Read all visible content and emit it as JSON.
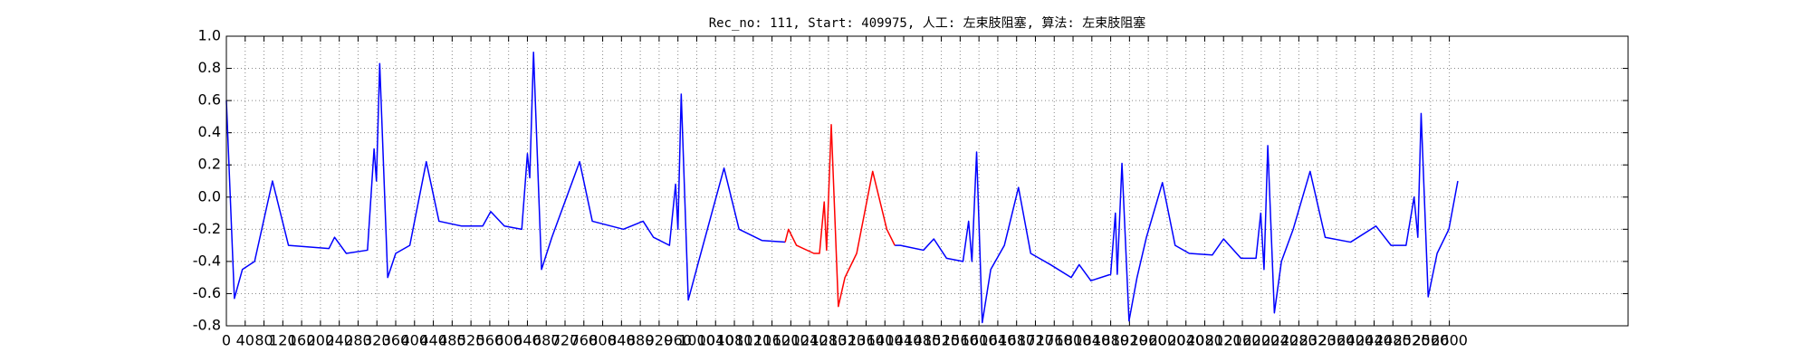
{
  "chart_data": {
    "type": "line",
    "title": "Rec_no: 111, Start: 409975, 人工: 左束肢阻塞, 算法: 左束肢阻塞",
    "series": [
      {
        "color": "#0000ff",
        "x": [
          0,
          17,
          34,
          60,
          98,
          132,
          218,
          230,
          255,
          300,
          314,
          319,
          326,
          343,
          360,
          390,
          425,
          452,
          500,
          545,
          562,
          591,
          628,
          640,
          645,
          653,
          670,
          692,
          751,
          778,
          844,
          886,
          908,
          942,
          955,
          960,
          967,
          982,
          1004,
          1058,
          1090,
          1139,
          1188,
          1300,
          1421,
          1433,
          1482,
          1504,
          1531,
          1566,
          1578,
          1585,
          1595,
          1607,
          1625,
          1654,
          1684,
          1710,
          1752,
          1796,
          1813,
          1838,
          1880,
          1890,
          1894,
          1904,
          1919,
          1936,
          1956,
          1990,
          2017,
          2047,
          2096,
          2120,
          2157,
          2189,
          2199,
          2206,
          2214,
          2228,
          2243,
          2268,
          2304,
          2336,
          2390,
          2444,
          2476,
          2508,
          2525,
          2533,
          2540,
          2555,
          2574,
          2599,
          2618
        ],
        "values": [
          0.6,
          -0.63,
          -0.45,
          -0.4,
          0.1,
          -0.3,
          -0.32,
          -0.25,
          -0.35,
          -0.33,
          0.3,
          0.1,
          0.83,
          -0.5,
          -0.35,
          -0.3,
          0.22,
          -0.15,
          -0.18,
          -0.18,
          -0.09,
          -0.18,
          -0.2,
          0.27,
          0.12,
          0.9,
          -0.45,
          -0.25,
          0.22,
          -0.15,
          -0.2,
          -0.15,
          -0.25,
          -0.3,
          0.08,
          -0.2,
          0.64,
          -0.64,
          -0.4,
          0.18,
          -0.2,
          -0.27,
          -0.28,
          null,
          -0.3,
          -0.3,
          -0.33,
          -0.26,
          -0.38,
          -0.4,
          -0.15,
          -0.4,
          0.28,
          -0.78,
          -0.45,
          -0.3,
          0.06,
          -0.35,
          -0.42,
          -0.5,
          -0.42,
          -0.52,
          -0.48,
          -0.1,
          -0.48,
          0.21,
          -0.77,
          -0.5,
          -0.25,
          0.09,
          -0.3,
          -0.35,
          -0.36,
          -0.26,
          -0.38,
          -0.38,
          -0.1,
          -0.45,
          0.32,
          -0.72,
          -0.4,
          -0.2,
          0.16,
          -0.25,
          -0.28,
          -0.18,
          -0.3,
          -0.3,
          0.0,
          -0.25,
          0.52,
          -0.62,
          -0.35,
          -0.2,
          0.1
        ]
      },
      {
        "color": "#ff0000",
        "x": [
          1188,
          1195,
          1212,
          1249,
          1261,
          1271,
          1276,
          1286,
          1301,
          1315,
          1340,
          1374,
          1404,
          1421
        ],
        "values": [
          -0.28,
          -0.2,
          -0.3,
          -0.35,
          -0.35,
          -0.03,
          -0.33,
          0.45,
          -0.68,
          -0.5,
          -0.35,
          0.16,
          -0.2,
          -0.3
        ]
      }
    ],
    "xlim": [
      0,
      2980
    ],
    "xticks": [
      0,
      40,
      80,
      120,
      160,
      200,
      240,
      280,
      320,
      360,
      400,
      440,
      480,
      520,
      560,
      600,
      640,
      680,
      720,
      760,
      800,
      840,
      880,
      920,
      960,
      1000,
      1040,
      1080,
      1120,
      1160,
      1200,
      1240,
      1280,
      1320,
      1360,
      1400,
      1440,
      1480,
      1520,
      1560,
      1600,
      1640,
      1680,
      1720,
      1760,
      1800,
      1840,
      1880,
      1920,
      1960,
      2000,
      2040,
      2080,
      2120,
      2160,
      2200,
      2240,
      2280,
      2320,
      2360,
      2400,
      2440,
      2480,
      2520,
      2560,
      2600
    ],
    "ylim": [
      -0.8,
      1.0
    ],
    "yticks": [
      -0.8,
      -0.6,
      -0.4,
      -0.2,
      {
        "value": 0,
        "label": "0.0"
      },
      0.2,
      0.4,
      0.6,
      0.8,
      {
        "value": 1,
        "label": "1.0"
      }
    ],
    "grid": true
  }
}
